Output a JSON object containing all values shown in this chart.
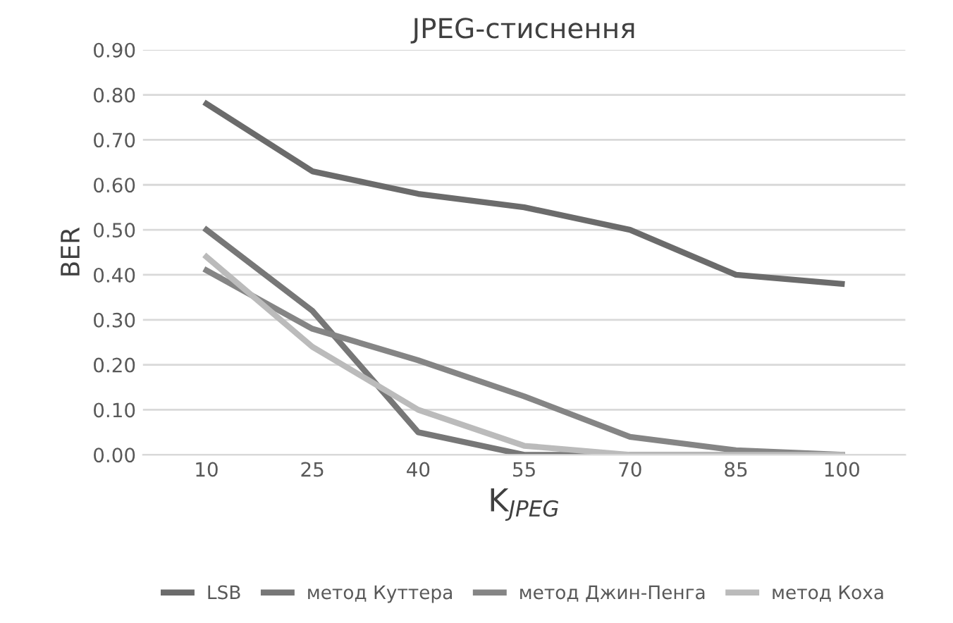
{
  "chart_data": {
    "type": "line",
    "title": "JPEG-стиснення",
    "xlabel": "K$_{JPEG}$",
    "ylabel": "BER",
    "categories": [
      "10",
      "25",
      "40",
      "55",
      "70",
      "85",
      "100"
    ],
    "series": [
      {
        "name": "LSB",
        "color": "#6b6b6b",
        "values": [
          0.78,
          0.63,
          0.58,
          0.55,
          0.5,
          0.4,
          0.38
        ]
      },
      {
        "name": "метод Куттера",
        "color": "#777777",
        "values": [
          0.5,
          0.32,
          0.05,
          0.0,
          0.0,
          0.0,
          0.0
        ]
      },
      {
        "name": "метод Джин-Пенга",
        "color": "#858585",
        "values": [
          0.41,
          0.28,
          0.21,
          0.13,
          0.04,
          0.01,
          0.0
        ]
      },
      {
        "name": "метод Коха",
        "color": "#bbbbbb",
        "values": [
          0.44,
          0.24,
          0.1,
          0.02,
          0.0,
          0.0,
          0.0
        ]
      }
    ],
    "ylim": [
      0,
      0.9
    ],
    "yticks": [
      {
        "value": 0,
        "label": "0.00"
      },
      {
        "value": 0.1,
        "label": "0.10"
      },
      {
        "value": 0.2,
        "label": "0.20"
      },
      {
        "value": 0.3,
        "label": "0.30"
      },
      {
        "value": 0.4,
        "label": "0.40"
      },
      {
        "value": 0.5,
        "label": "0.50"
      },
      {
        "value": 0.6,
        "label": "0.60"
      },
      {
        "value": 0.7,
        "label": "0.70"
      },
      {
        "value": 0.8,
        "label": "0.80"
      },
      {
        "value": 0.9,
        "label": "0.90"
      }
    ],
    "grid": "y",
    "legend": "bottom",
    "marker": "none",
    "line_style": "solid"
  }
}
